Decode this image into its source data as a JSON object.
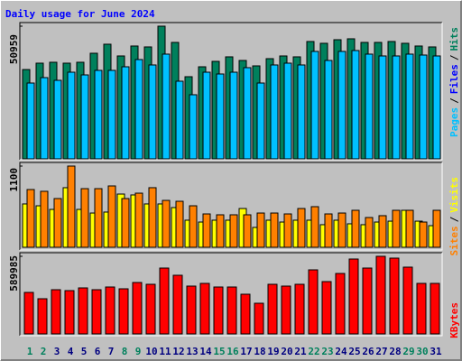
{
  "title": "Daily usage for June 2024",
  "legend_separator": "/",
  "categories": [
    "1",
    "2",
    "3",
    "4",
    "5",
    "6",
    "7",
    "8",
    "9",
    "10",
    "11",
    "12",
    "13",
    "14",
    "15",
    "16",
    "17",
    "18",
    "19",
    "20",
    "21",
    "22",
    "23",
    "24",
    "25",
    "26",
    "27",
    "28",
    "29",
    "30",
    "31"
  ],
  "category_colors": [
    "#00805c",
    "#00805c",
    "#000080",
    "#000080",
    "#000080",
    "#000080",
    "#000080",
    "#00805c",
    "#00805c",
    "#000080",
    "#000080",
    "#000080",
    "#000080",
    "#000080",
    "#00805c",
    "#00805c",
    "#000080",
    "#000080",
    "#000080",
    "#000080",
    "#000080",
    "#00805c",
    "#00805c",
    "#000080",
    "#000080",
    "#000080",
    "#000080",
    "#000080",
    "#00805c",
    "#00805c",
    "#000080"
  ],
  "chart_data": [
    {
      "type": "bar",
      "ylim": [
        0,
        50959
      ],
      "yticks": [
        50959
      ],
      "series": [
        {
          "name": "Hits",
          "color": "#00805c",
          "values": [
            34300,
            36750,
            37100,
            36750,
            37100,
            40560,
            44030,
            39520,
            43340,
            42990,
            50959,
            44720,
            31550,
            35360,
            37440,
            39180,
            37790,
            35710,
            38480,
            39520,
            39180,
            45070,
            44380,
            45760,
            46110,
            44720,
            44720,
            45070,
            44380,
            43340,
            42990
          ]
        },
        {
          "name": "Files",
          "color": "#0000ff",
          "values": [
            15000,
            14600,
            16000,
            15200,
            16300,
            16600,
            19000,
            15600,
            17000,
            17300,
            25000,
            16000,
            12000,
            15000,
            15600,
            14000,
            15300,
            12800,
            14000,
            16000,
            15600,
            18600,
            16000,
            17600,
            18000,
            16300,
            17300,
            16300,
            16600,
            15600,
            16300
          ]
        },
        {
          "name": "Pages",
          "color": "#00c0ff",
          "values": [
            29120,
            31200,
            30160,
            33280,
            32240,
            33980,
            33980,
            35360,
            38140,
            36060,
            40220,
            29820,
            24620,
            33280,
            32590,
            33280,
            35020,
            29120,
            36060,
            36750,
            36060,
            41260,
            37790,
            41260,
            41600,
            40220,
            39520,
            39520,
            40220,
            39870,
            39520
          ]
        }
      ]
    },
    {
      "type": "bar",
      "ylim": [
        0,
        1100
      ],
      "yticks": [
        1100
      ],
      "series": [
        {
          "name": "Visits",
          "color": "#ffff00",
          "values": [
            587,
            562,
            513,
            807,
            513,
            464,
            477,
            721,
            709,
            587,
            587,
            538,
            367,
            342,
            367,
            367,
            525,
            269,
            367,
            342,
            367,
            367,
            306,
            367,
            318,
            306,
            342,
            354,
            501,
            354,
            293
          ]
        },
        {
          "name": "Sites",
          "color": "#ff8000",
          "values": [
            782,
            758,
            660,
            1100,
            794,
            794,
            831,
            660,
            733,
            807,
            635,
            623,
            562,
            452,
            440,
            440,
            440,
            464,
            464,
            452,
            525,
            550,
            452,
            464,
            501,
            403,
            428,
            501,
            501,
            342,
            501
          ]
        }
      ]
    },
    {
      "type": "bar",
      "ylim": [
        0,
        589985
      ],
      "yticks": [
        589985
      ],
      "series": [
        {
          "name": "KBytes",
          "color": "#ff0000",
          "values": [
            315560,
            267540,
            336140,
            329280,
            349860,
            336140,
            356720,
            343000,
            391020,
            377300,
            500780,
            445900,
            363580,
            384160,
            356720,
            356720,
            301840,
            233240,
            377300,
            363580,
            377300,
            487060,
            397880,
            459620,
            569380,
            500780,
            589985,
            576240,
            507640,
            384160,
            384160
          ]
        }
      ]
    }
  ]
}
